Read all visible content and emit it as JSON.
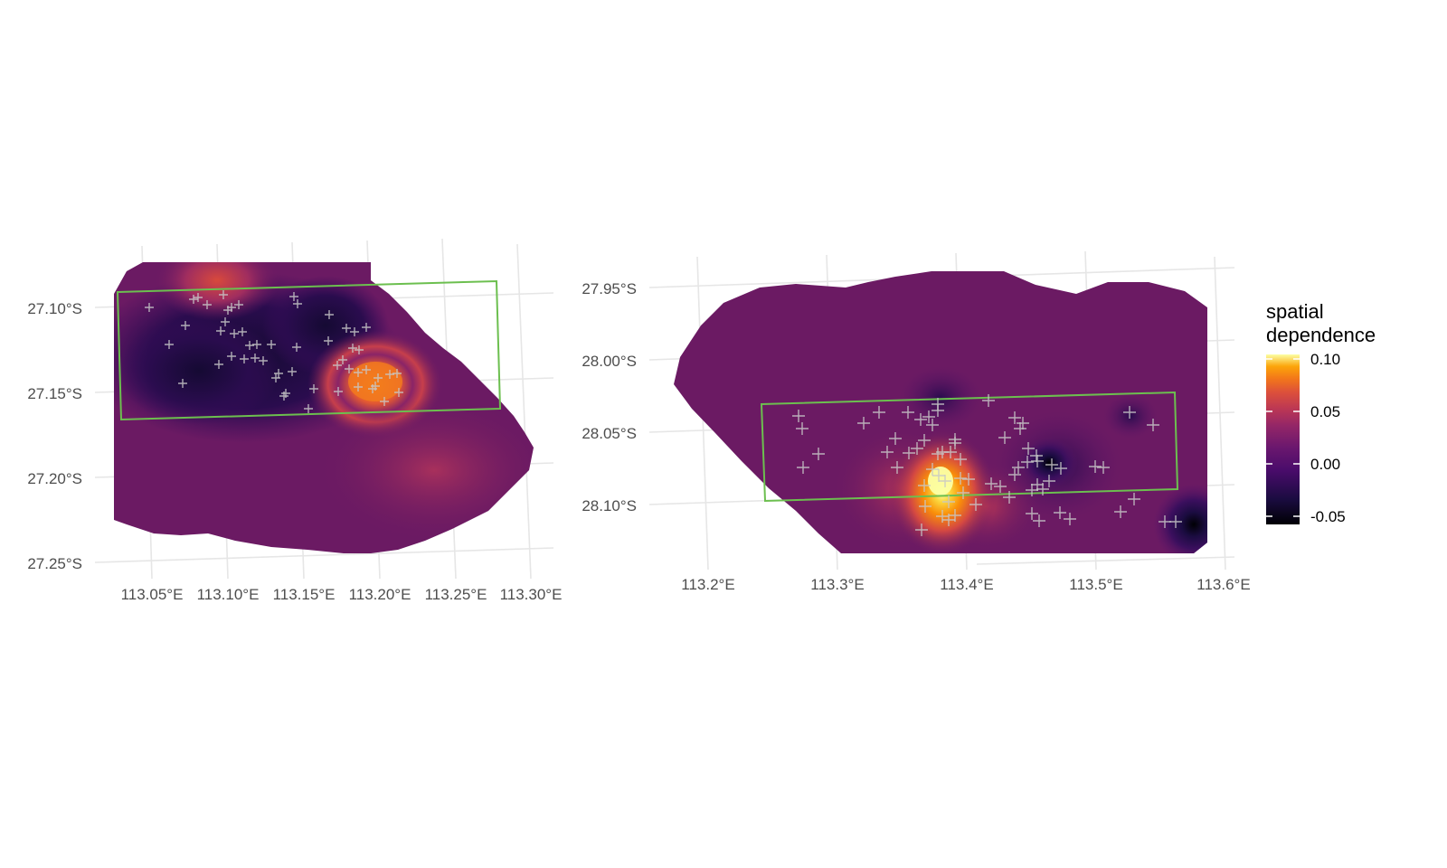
{
  "maps": [
    {
      "panel": "left",
      "x_tick_labels": [
        "113.05°E",
        "113.10°E",
        "113.15°E",
        "113.20°E",
        "113.25°E",
        "113.30°E"
      ],
      "y_tick_labels": [
        "27.10°S",
        "27.15°S",
        "27.20°S",
        "27.25°S"
      ]
    },
    {
      "panel": "right",
      "x_tick_labels": [
        "113.2°E",
        "113.3°E",
        "113.4°E",
        "113.5°E",
        "113.6°E"
      ],
      "y_tick_labels": [
        "27.95°S",
        "28.00°S",
        "28.05°S",
        "28.10°S"
      ]
    }
  ],
  "legend": {
    "title_line1": "spatial",
    "title_line2": "dependence",
    "labels": [
      "0.10",
      "0.05",
      "0.00",
      "-0.05"
    ],
    "palette": "inferno",
    "colors": {
      "high": "#fcffa4",
      "orange": "#f98e09",
      "red": "#bc3754",
      "purple": "#6a176e",
      "dark": "#1b0c41",
      "black": "#000004"
    }
  },
  "colors": {
    "study_area_outline": "#6cbf4f",
    "site_markers": "#c8c8c8",
    "background_field": "#6b1a63"
  }
}
